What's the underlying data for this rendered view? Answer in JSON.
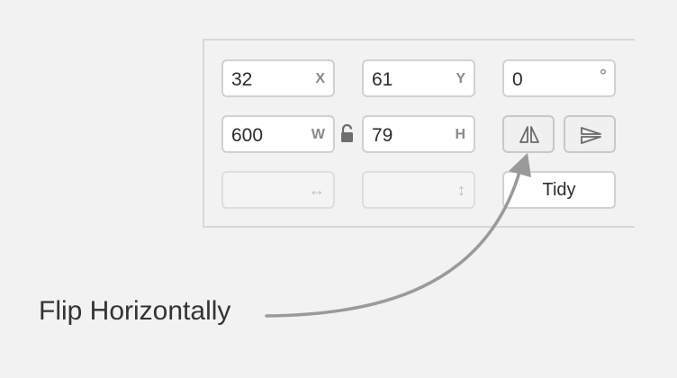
{
  "fields": {
    "x": {
      "value": "32",
      "suffix": "X"
    },
    "y": {
      "value": "61",
      "suffix": "Y"
    },
    "rotation": {
      "value": "0",
      "suffix": "°"
    },
    "w": {
      "value": "600",
      "suffix": "W"
    },
    "h": {
      "value": "79",
      "suffix": "H"
    },
    "spacing_h": {
      "value": "",
      "suffix": "↔"
    },
    "spacing_v": {
      "value": "",
      "suffix": "↕"
    }
  },
  "buttons": {
    "tidy_label": "Tidy",
    "flip_horizontal_icon": "flip-horizontal-icon",
    "flip_vertical_icon": "flip-vertical-icon",
    "lock_icon": "unlocked-padlock-icon"
  },
  "annotation": {
    "label": "Flip Horizontally"
  },
  "colors": {
    "background": "#f2f2f2",
    "field_border": "#d1d1d1",
    "arrow": "#9a9a9a"
  }
}
